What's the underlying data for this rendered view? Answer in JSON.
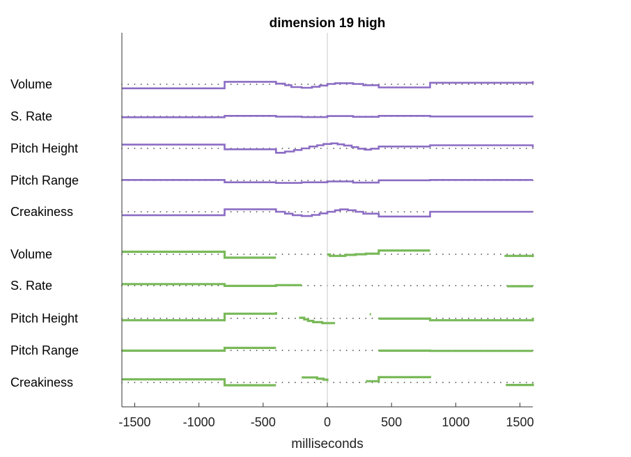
{
  "chart_data": {
    "type": "line",
    "title": "dimension 19 high",
    "xlabel": "milliseconds",
    "xlim": [
      -1600,
      1600
    ],
    "xticks": [
      -1500,
      -1000,
      -500,
      0,
      500,
      1000,
      1500
    ],
    "xtick_labels": [
      "-1500",
      "-1000",
      "-500",
      "0",
      "500",
      "1000",
      "1500"
    ],
    "vline_x": 0,
    "colors": {
      "purple": "#8b6cc4",
      "green": "#79b959",
      "dots": "#444444",
      "axis": "#333333",
      "vline": "#c8c8c8"
    },
    "rows": [
      {
        "label": "Volume",
        "color": "purple",
        "segments": [
          [
            [
              -1600,
              -1.3
            ],
            [
              -800,
              -1.3
            ],
            [
              -800,
              0.8
            ],
            [
              -400,
              0.8
            ],
            [
              -400,
              0.2
            ],
            [
              -330,
              0.2
            ],
            [
              -330,
              -0.3
            ],
            [
              -280,
              -0.3
            ],
            [
              -280,
              -0.9
            ],
            [
              -200,
              -0.9
            ],
            [
              -200,
              -1.1
            ],
            [
              -120,
              -1.1
            ],
            [
              -120,
              -0.8
            ],
            [
              -60,
              -0.8
            ],
            [
              -60,
              -0.4
            ],
            [
              0,
              -0.4
            ],
            [
              0,
              0.1
            ],
            [
              60,
              0.1
            ],
            [
              60,
              0.35
            ],
            [
              200,
              0.35
            ],
            [
              200,
              0.1
            ],
            [
              280,
              0.1
            ],
            [
              280,
              -0.3
            ],
            [
              400,
              -0.3
            ],
            [
              400,
              -1.0
            ],
            [
              800,
              -1.0
            ],
            [
              800,
              0.5
            ],
            [
              1600,
              0.5
            ],
            [
              1600,
              1.0
            ]
          ]
        ]
      },
      {
        "label": "S. Rate",
        "color": "purple",
        "segments": [
          [
            [
              -1600,
              -0.3
            ],
            [
              -800,
              -0.3
            ],
            [
              -800,
              0.15
            ],
            [
              -400,
              0.15
            ],
            [
              -400,
              -0.1
            ],
            [
              -200,
              -0.1
            ],
            [
              -200,
              -0.25
            ],
            [
              0,
              -0.25
            ],
            [
              0,
              0.1
            ],
            [
              200,
              0.1
            ],
            [
              200,
              -0.15
            ],
            [
              400,
              -0.15
            ],
            [
              400,
              0.15
            ],
            [
              800,
              0.15
            ],
            [
              800,
              -0.05
            ],
            [
              1600,
              -0.05
            ]
          ]
        ]
      },
      {
        "label": "Pitch Height",
        "color": "purple",
        "segments": [
          [
            [
              -1600,
              1.2
            ],
            [
              -800,
              1.2
            ],
            [
              -800,
              -0.3
            ],
            [
              -400,
              -0.3
            ],
            [
              -400,
              -1.4
            ],
            [
              -330,
              -1.4
            ],
            [
              -330,
              -1.0
            ],
            [
              -260,
              -1.0
            ],
            [
              -260,
              -0.5
            ],
            [
              -200,
              -0.5
            ],
            [
              -200,
              0.0
            ],
            [
              -140,
              0.0
            ],
            [
              -140,
              0.6
            ],
            [
              -80,
              0.6
            ],
            [
              -80,
              1.0
            ],
            [
              -30,
              1.0
            ],
            [
              -30,
              1.4
            ],
            [
              30,
              1.4
            ],
            [
              30,
              1.6
            ],
            [
              80,
              1.6
            ],
            [
              80,
              1.3
            ],
            [
              130,
              1.3
            ],
            [
              130,
              0.9
            ],
            [
              190,
              0.9
            ],
            [
              190,
              0.4
            ],
            [
              240,
              0.4
            ],
            [
              240,
              -0.1
            ],
            [
              290,
              -0.1
            ],
            [
              290,
              -0.4
            ],
            [
              340,
              -0.4
            ],
            [
              340,
              -0.1
            ],
            [
              400,
              -0.1
            ],
            [
              400,
              0.6
            ],
            [
              800,
              0.6
            ],
            [
              800,
              1.0
            ],
            [
              1600,
              1.0
            ],
            [
              1600,
              0.3
            ]
          ]
        ]
      },
      {
        "label": "Pitch Range",
        "color": "purple",
        "segments": [
          [
            [
              -1600,
              0.15
            ],
            [
              -800,
              0.15
            ],
            [
              -800,
              -0.6
            ],
            [
              -400,
              -0.6
            ],
            [
              -400,
              -0.8
            ],
            [
              -200,
              -0.8
            ],
            [
              -200,
              -0.6
            ],
            [
              0,
              -0.6
            ],
            [
              0,
              -0.3
            ],
            [
              200,
              -0.3
            ],
            [
              200,
              -0.7
            ],
            [
              400,
              -0.7
            ],
            [
              400,
              0.05
            ],
            [
              800,
              0.05
            ],
            [
              800,
              0.15
            ],
            [
              1600,
              0.15
            ]
          ]
        ]
      },
      {
        "label": "Creakiness",
        "color": "purple",
        "segments": [
          [
            [
              -1600,
              -1.1
            ],
            [
              -800,
              -1.1
            ],
            [
              -800,
              0.8
            ],
            [
              -400,
              0.8
            ],
            [
              -400,
              0.0
            ],
            [
              -330,
              0.0
            ],
            [
              -330,
              -0.6
            ],
            [
              -270,
              -0.6
            ],
            [
              -270,
              -1.1
            ],
            [
              -200,
              -1.1
            ],
            [
              -200,
              -1.35
            ],
            [
              -120,
              -1.35
            ],
            [
              -120,
              -1.0
            ],
            [
              -60,
              -1.0
            ],
            [
              -60,
              -0.5
            ],
            [
              0,
              -0.5
            ],
            [
              0,
              0.0
            ],
            [
              60,
              0.0
            ],
            [
              60,
              0.5
            ],
            [
              100,
              0.5
            ],
            [
              100,
              0.75
            ],
            [
              160,
              0.75
            ],
            [
              160,
              0.5
            ],
            [
              220,
              0.5
            ],
            [
              220,
              0.0
            ],
            [
              280,
              0.0
            ],
            [
              280,
              -0.6
            ],
            [
              400,
              -0.6
            ],
            [
              400,
              -1.5
            ],
            [
              800,
              -1.5
            ],
            [
              800,
              0.0
            ],
            [
              1600,
              0.0
            ]
          ]
        ]
      },
      {
        "label": "Volume",
        "color": "green",
        "segments": [
          [
            [
              -1600,
              0.8
            ],
            [
              -800,
              0.8
            ],
            [
              -800,
              -1.1
            ],
            [
              -400,
              -1.1
            ]
          ],
          [
            [
              0,
              -0.1
            ],
            [
              20,
              -0.1
            ],
            [
              20,
              -0.5
            ],
            [
              140,
              -0.5
            ],
            [
              140,
              -0.2
            ],
            [
              220,
              -0.2
            ],
            [
              220,
              0.0
            ],
            [
              300,
              0.0
            ],
            [
              300,
              0.2
            ],
            [
              400,
              0.2
            ],
            [
              400,
              1.2
            ],
            [
              800,
              1.2
            ]
          ],
          [
            [
              1380,
              -0.5
            ],
            [
              1600,
              -0.5
            ],
            [
              1600,
              -0.9
            ]
          ]
        ]
      },
      {
        "label": "S. Rate",
        "color": "green",
        "segments": [
          [
            [
              -1600,
              0.5
            ],
            [
              -800,
              0.5
            ],
            [
              -800,
              -0.1
            ],
            [
              -400,
              -0.1
            ],
            [
              -400,
              0.15
            ],
            [
              -200,
              0.15
            ]
          ],
          [
            [
              1400,
              -0.2
            ],
            [
              1600,
              -0.2
            ]
          ]
        ]
      },
      {
        "label": "Pitch Height",
        "color": "green",
        "segments": [
          [
            [
              -1600,
              -0.6
            ],
            [
              -800,
              -0.6
            ],
            [
              -800,
              1.5
            ],
            [
              -400,
              1.5
            ],
            [
              -400,
              2.0
            ]
          ],
          [
            [
              -220,
              0.2
            ],
            [
              -180,
              0.2
            ],
            [
              -180,
              -0.3
            ],
            [
              -150,
              -0.3
            ],
            [
              -150,
              -0.8
            ],
            [
              -110,
              -0.8
            ],
            [
              -110,
              -1.2
            ],
            [
              -40,
              -1.2
            ],
            [
              -40,
              -1.5
            ],
            [
              60,
              -1.5
            ]
          ],
          [
            [
              330,
              1.3
            ],
            [
              340,
              1.3
            ]
          ],
          [
            [
              400,
              -0.1
            ],
            [
              800,
              -0.1
            ],
            [
              800,
              -0.6
            ],
            [
              1600,
              -0.6
            ],
            [
              1600,
              0.2
            ]
          ]
        ]
      },
      {
        "label": "Pitch Range",
        "color": "green",
        "segments": [
          [
            [
              -1600,
              -0.1
            ],
            [
              -800,
              -0.1
            ],
            [
              -800,
              0.8
            ],
            [
              -400,
              0.8
            ]
          ],
          [
            [
              400,
              -0.1
            ],
            [
              800,
              -0.1
            ],
            [
              800,
              -0.15
            ],
            [
              1600,
              -0.15
            ]
          ]
        ]
      },
      {
        "label": "Creakiness",
        "color": "green",
        "segments": [
          [
            [
              -1600,
              1.0
            ],
            [
              -800,
              1.0
            ],
            [
              -800,
              -0.9
            ],
            [
              -400,
              -0.9
            ]
          ],
          [
            [
              -200,
              1.6
            ],
            [
              -80,
              1.6
            ],
            [
              -80,
              1.2
            ],
            [
              -30,
              1.2
            ],
            [
              -30,
              0.9
            ],
            [
              0,
              0.9
            ],
            [
              0,
              0.4
            ]
          ],
          [
            [
              300,
              0.4
            ],
            [
              400,
              0.4
            ],
            [
              400,
              1.7
            ],
            [
              800,
              1.7
            ],
            [
              800,
              1.4
            ]
          ],
          [
            [
              1390,
              -0.8
            ],
            [
              1600,
              -0.8
            ],
            [
              1600,
              -0.3
            ]
          ]
        ]
      }
    ]
  }
}
